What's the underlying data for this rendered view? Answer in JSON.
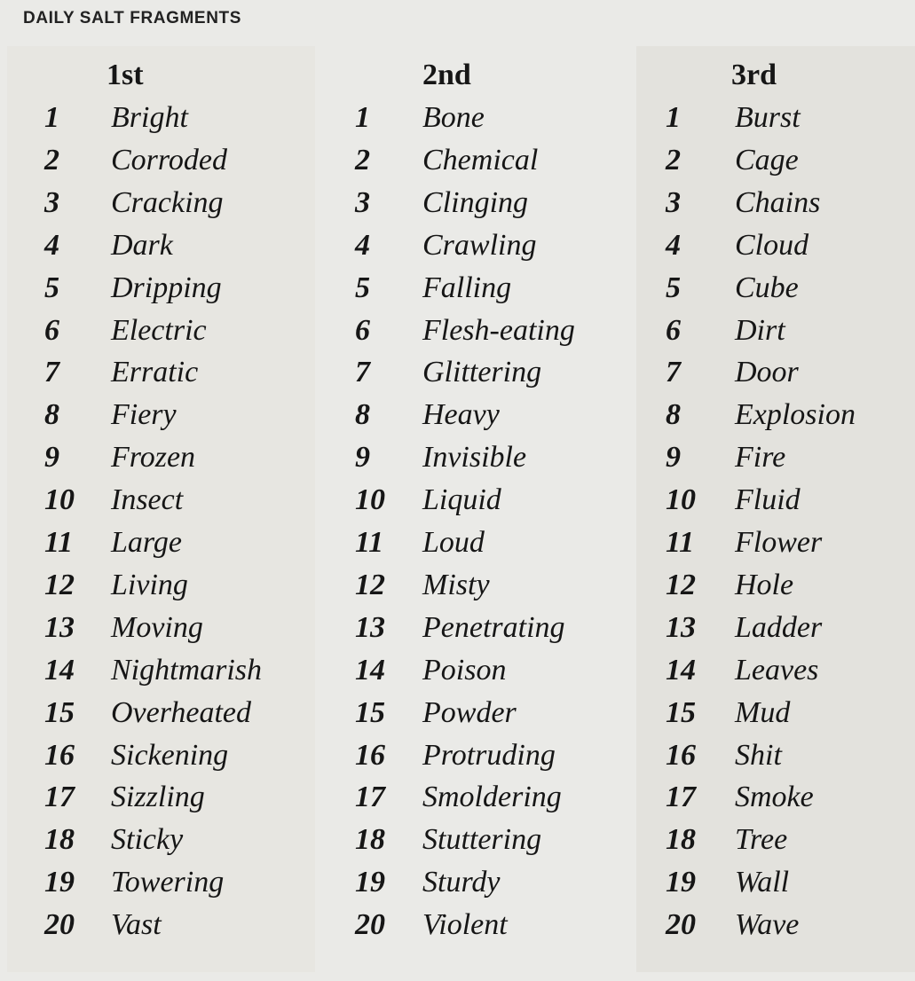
{
  "title": "DAILY SALT FRAGMENTS",
  "columns": [
    {
      "header": "1st",
      "items": [
        "Bright",
        "Corroded",
        "Cracking",
        "Dark",
        "Dripping",
        "Electric",
        "Erratic",
        "Fiery",
        "Frozen",
        "Insect",
        "Large",
        "Living",
        "Moving",
        "Nightmarish",
        "Overheated",
        "Sickening",
        "Sizzling",
        "Sticky",
        "Towering",
        "Vast"
      ]
    },
    {
      "header": "2nd",
      "items": [
        "Bone",
        "Chemical",
        "Clinging",
        "Crawling",
        "Falling",
        "Flesh-eating",
        "Glittering",
        "Heavy",
        "Invisible",
        "Liquid",
        "Loud",
        "Misty",
        "Penetrating",
        "Poison",
        "Powder",
        "Protruding",
        "Smoldering",
        "Stuttering",
        "Sturdy",
        "Violent"
      ]
    },
    {
      "header": "3rd",
      "items": [
        "Burst",
        "Cage",
        "Chains",
        "Cloud",
        "Cube",
        "Dirt",
        "Door",
        "Explosion",
        "Fire",
        "Fluid",
        "Flower",
        "Hole",
        "Ladder",
        "Leaves",
        "Mud",
        "Shit",
        "Smoke",
        "Tree",
        "Wall",
        "Wave"
      ]
    }
  ],
  "numbers": [
    "1",
    "2",
    "3",
    "4",
    "5",
    "6",
    "7",
    "8",
    "9",
    "10",
    "11",
    "12",
    "13",
    "14",
    "15",
    "16",
    "17",
    "18",
    "19",
    "20"
  ]
}
